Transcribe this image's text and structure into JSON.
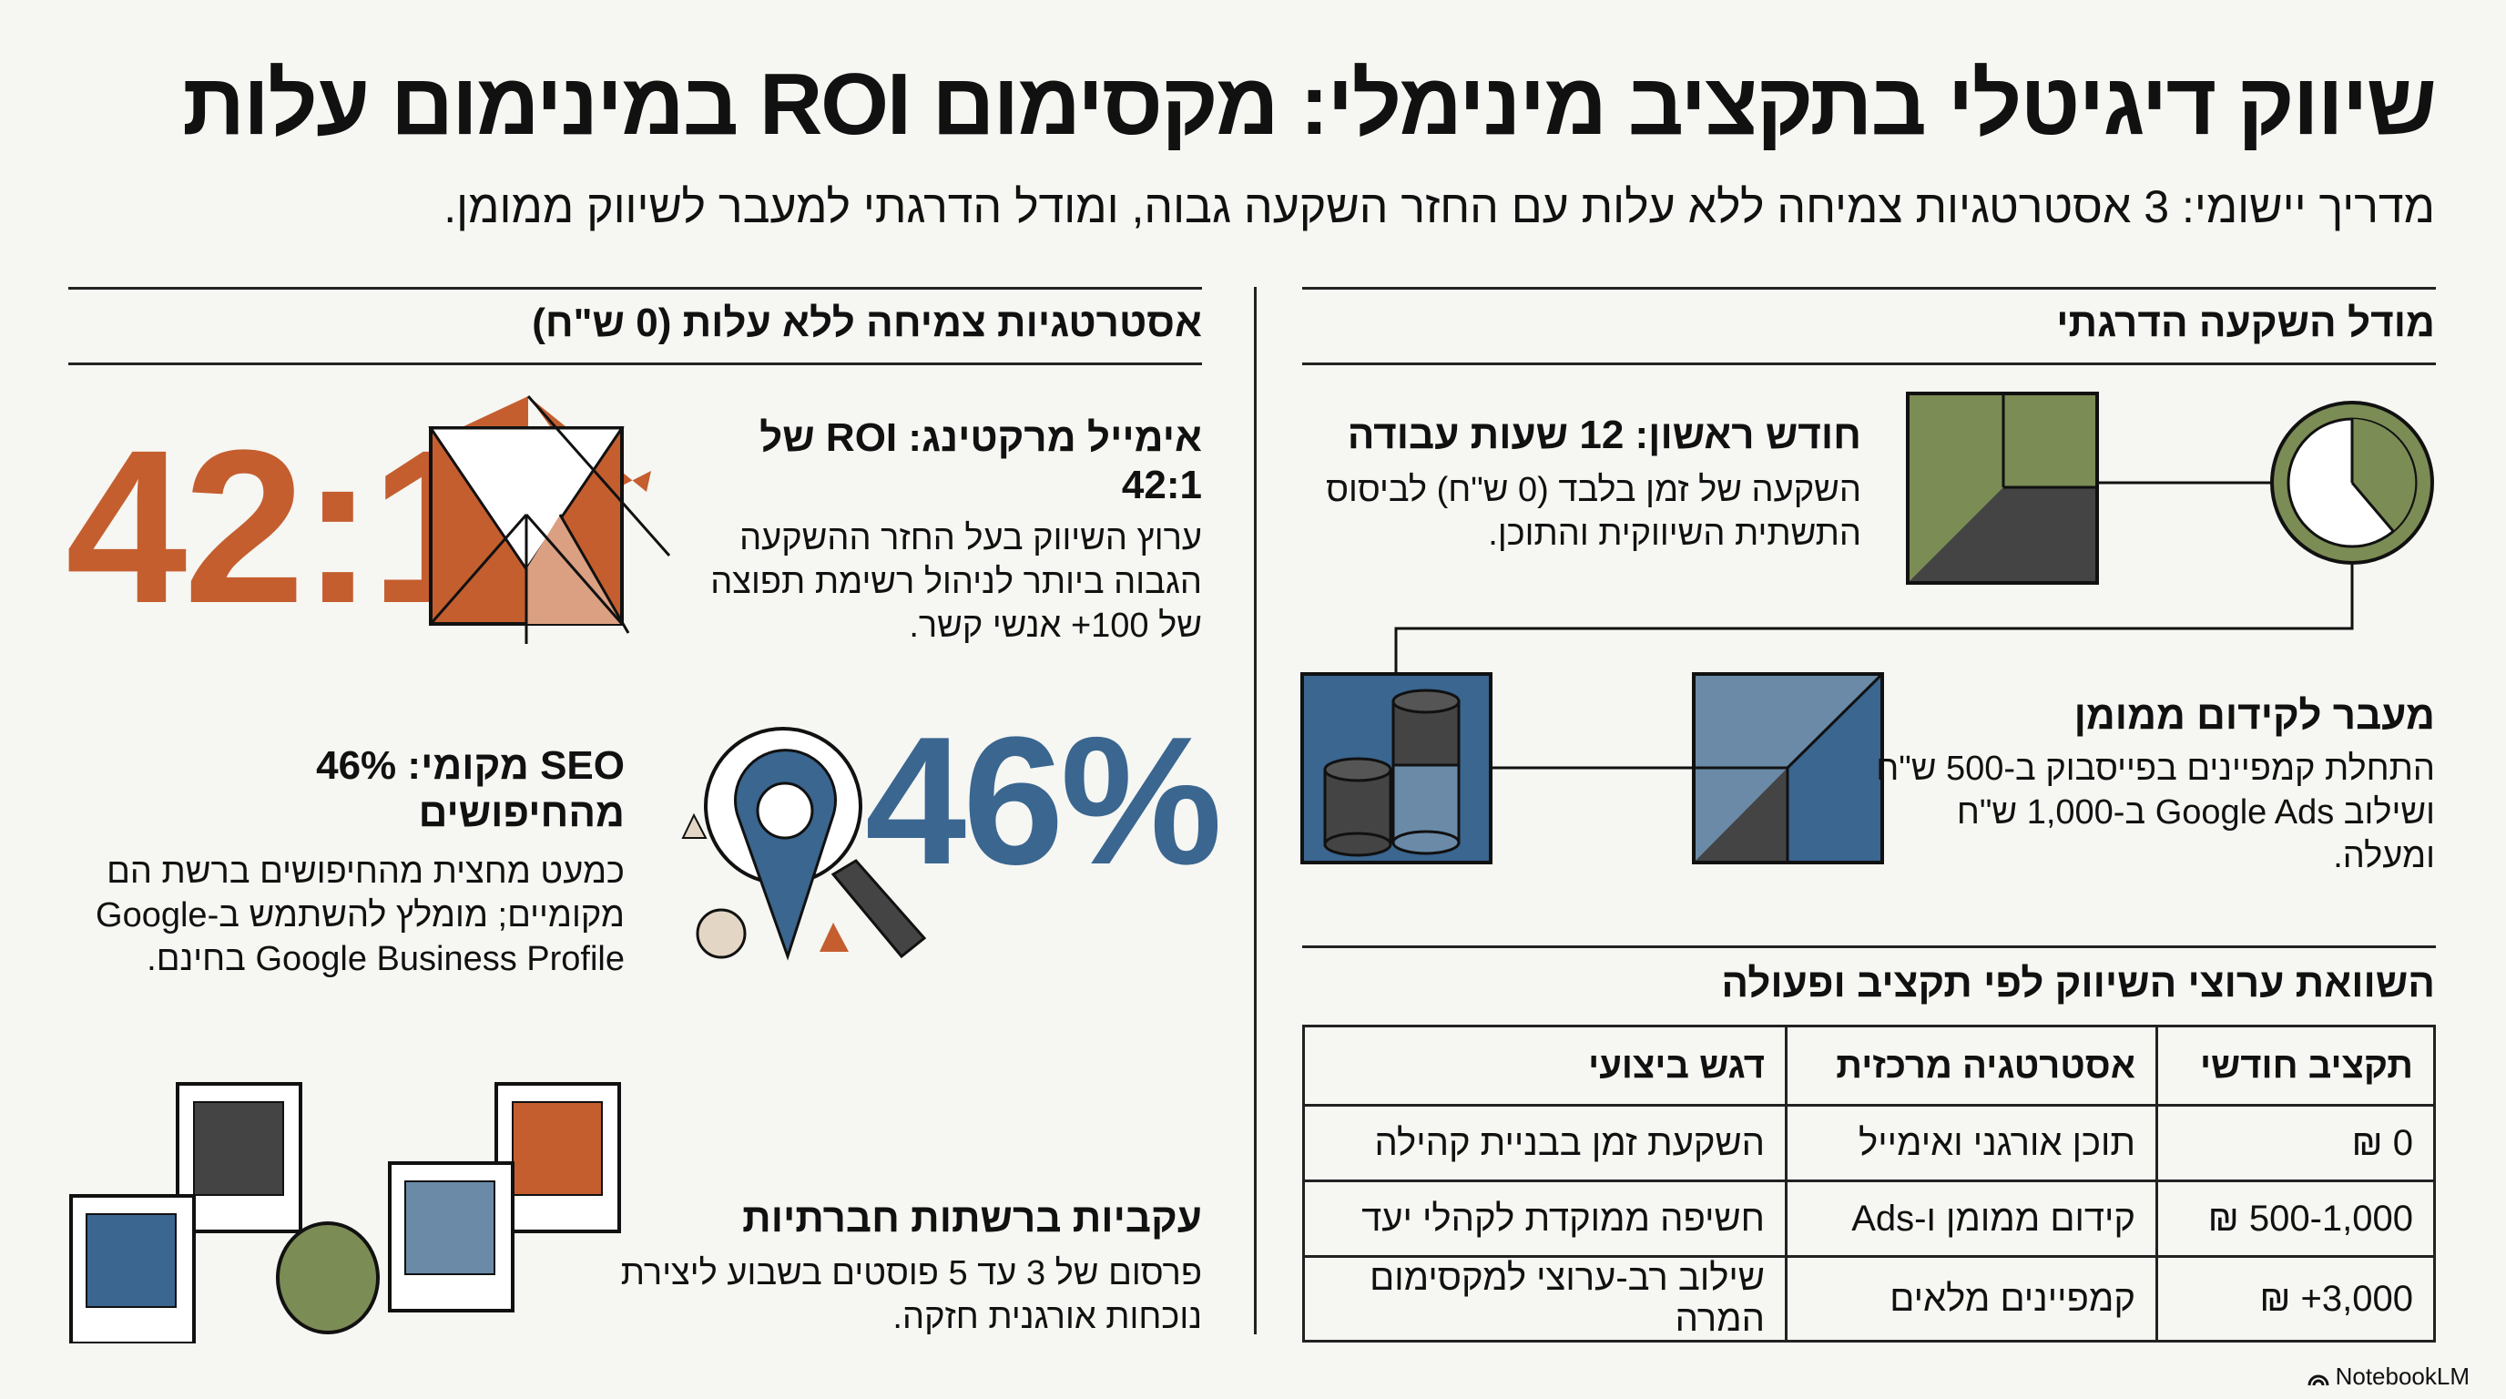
{
  "header": {
    "title": "שיווק דיגיטלי בתקציב מינימלי: מקסימום ROI במינימום עלות",
    "subtitle": "מדריך יישומי: 3 אסטרטגיות צמיחה ללא עלות עם החזר השקעה גבוה, ומודל הדרגתי למעבר לשיווק ממומן."
  },
  "left": {
    "heading": "אסטרטגיות צמיחה ללא עלות (0 ש\"ח)",
    "email": {
      "stat": "42:1",
      "title": "אימייל מרקטינג: ROI של 42:1",
      "body": [
        "ערוץ השיווק בעל החזר ההשקעה",
        "הגבוה ביותר לניהול רשימת תפוצה",
        "של 100+ אנשי קשר."
      ],
      "icon": "envelope-icon"
    },
    "seo": {
      "stat": "46%",
      "title": [
        "SEO מקומי: 46%",
        "מהחיפושים"
      ],
      "body": [
        "כמעט מחצית מהחיפושים ברשת הם",
        "מקומיים; מומלץ להשתמש ב-Google",
        "Google Business Profile בחינם."
      ],
      "icon": "magnifier-location-icon"
    },
    "social": {
      "title": "עקביות ברשתות חברתיות",
      "body": [
        "פרסום של 3 עד 5 פוסטים בשבוע ליצירת",
        "נוכחות אורגנית חזקה."
      ],
      "icon": "social-posts-icon"
    }
  },
  "right": {
    "heading": "מודל השקעה הדרגתי",
    "step1": {
      "title": "חודש ראשון: 12 שעות עבודה",
      "body": [
        "השקעה של זמן בלבד (0 ש\"ח) לביסוס",
        "התשתית השיווקית והתוכן."
      ],
      "icons": [
        "clock-icon",
        "foundation-block-icon"
      ]
    },
    "step2": {
      "title": "מעבר לקידום ממומן",
      "body": [
        "התחלת קמפיינים בפייסבוק ב-500 ש\"ח",
        "ושילוב Google Ads ב-1,000 ש\"ח",
        "ומעלה."
      ],
      "icons": [
        "growth-block-icon",
        "coins-icon"
      ]
    },
    "table": {
      "heading": "השוואת ערוצי השיווק לפי תקציב ופעולה",
      "columns": [
        "תקציב חודשי",
        "אסטרטגיה מרכזית",
        "דגש ביצועי"
      ],
      "rows": [
        [
          "0 ₪",
          "תוכן אורגני ואימייל",
          "השקעת זמן בבניית קהילה"
        ],
        [
          "500-1,000 ₪",
          "קידום ממומן ו-Ads",
          "חשיפה ממוקדת לקהלי יעד"
        ],
        [
          "3,000+ ₪",
          "קמפיינים מלאים",
          "שילוב רב-ערוצי למקסימום המרה"
        ]
      ]
    }
  },
  "footer": {
    "brand": "NotebookLM"
  },
  "colors": {
    "orange": "#c45e2f",
    "blue": "#3a6690",
    "light_blue": "#6a8aa8",
    "green": "#7b8c55",
    "dark": "#444444",
    "beige": "#e3d6c4",
    "background": "#f6f6f2"
  }
}
